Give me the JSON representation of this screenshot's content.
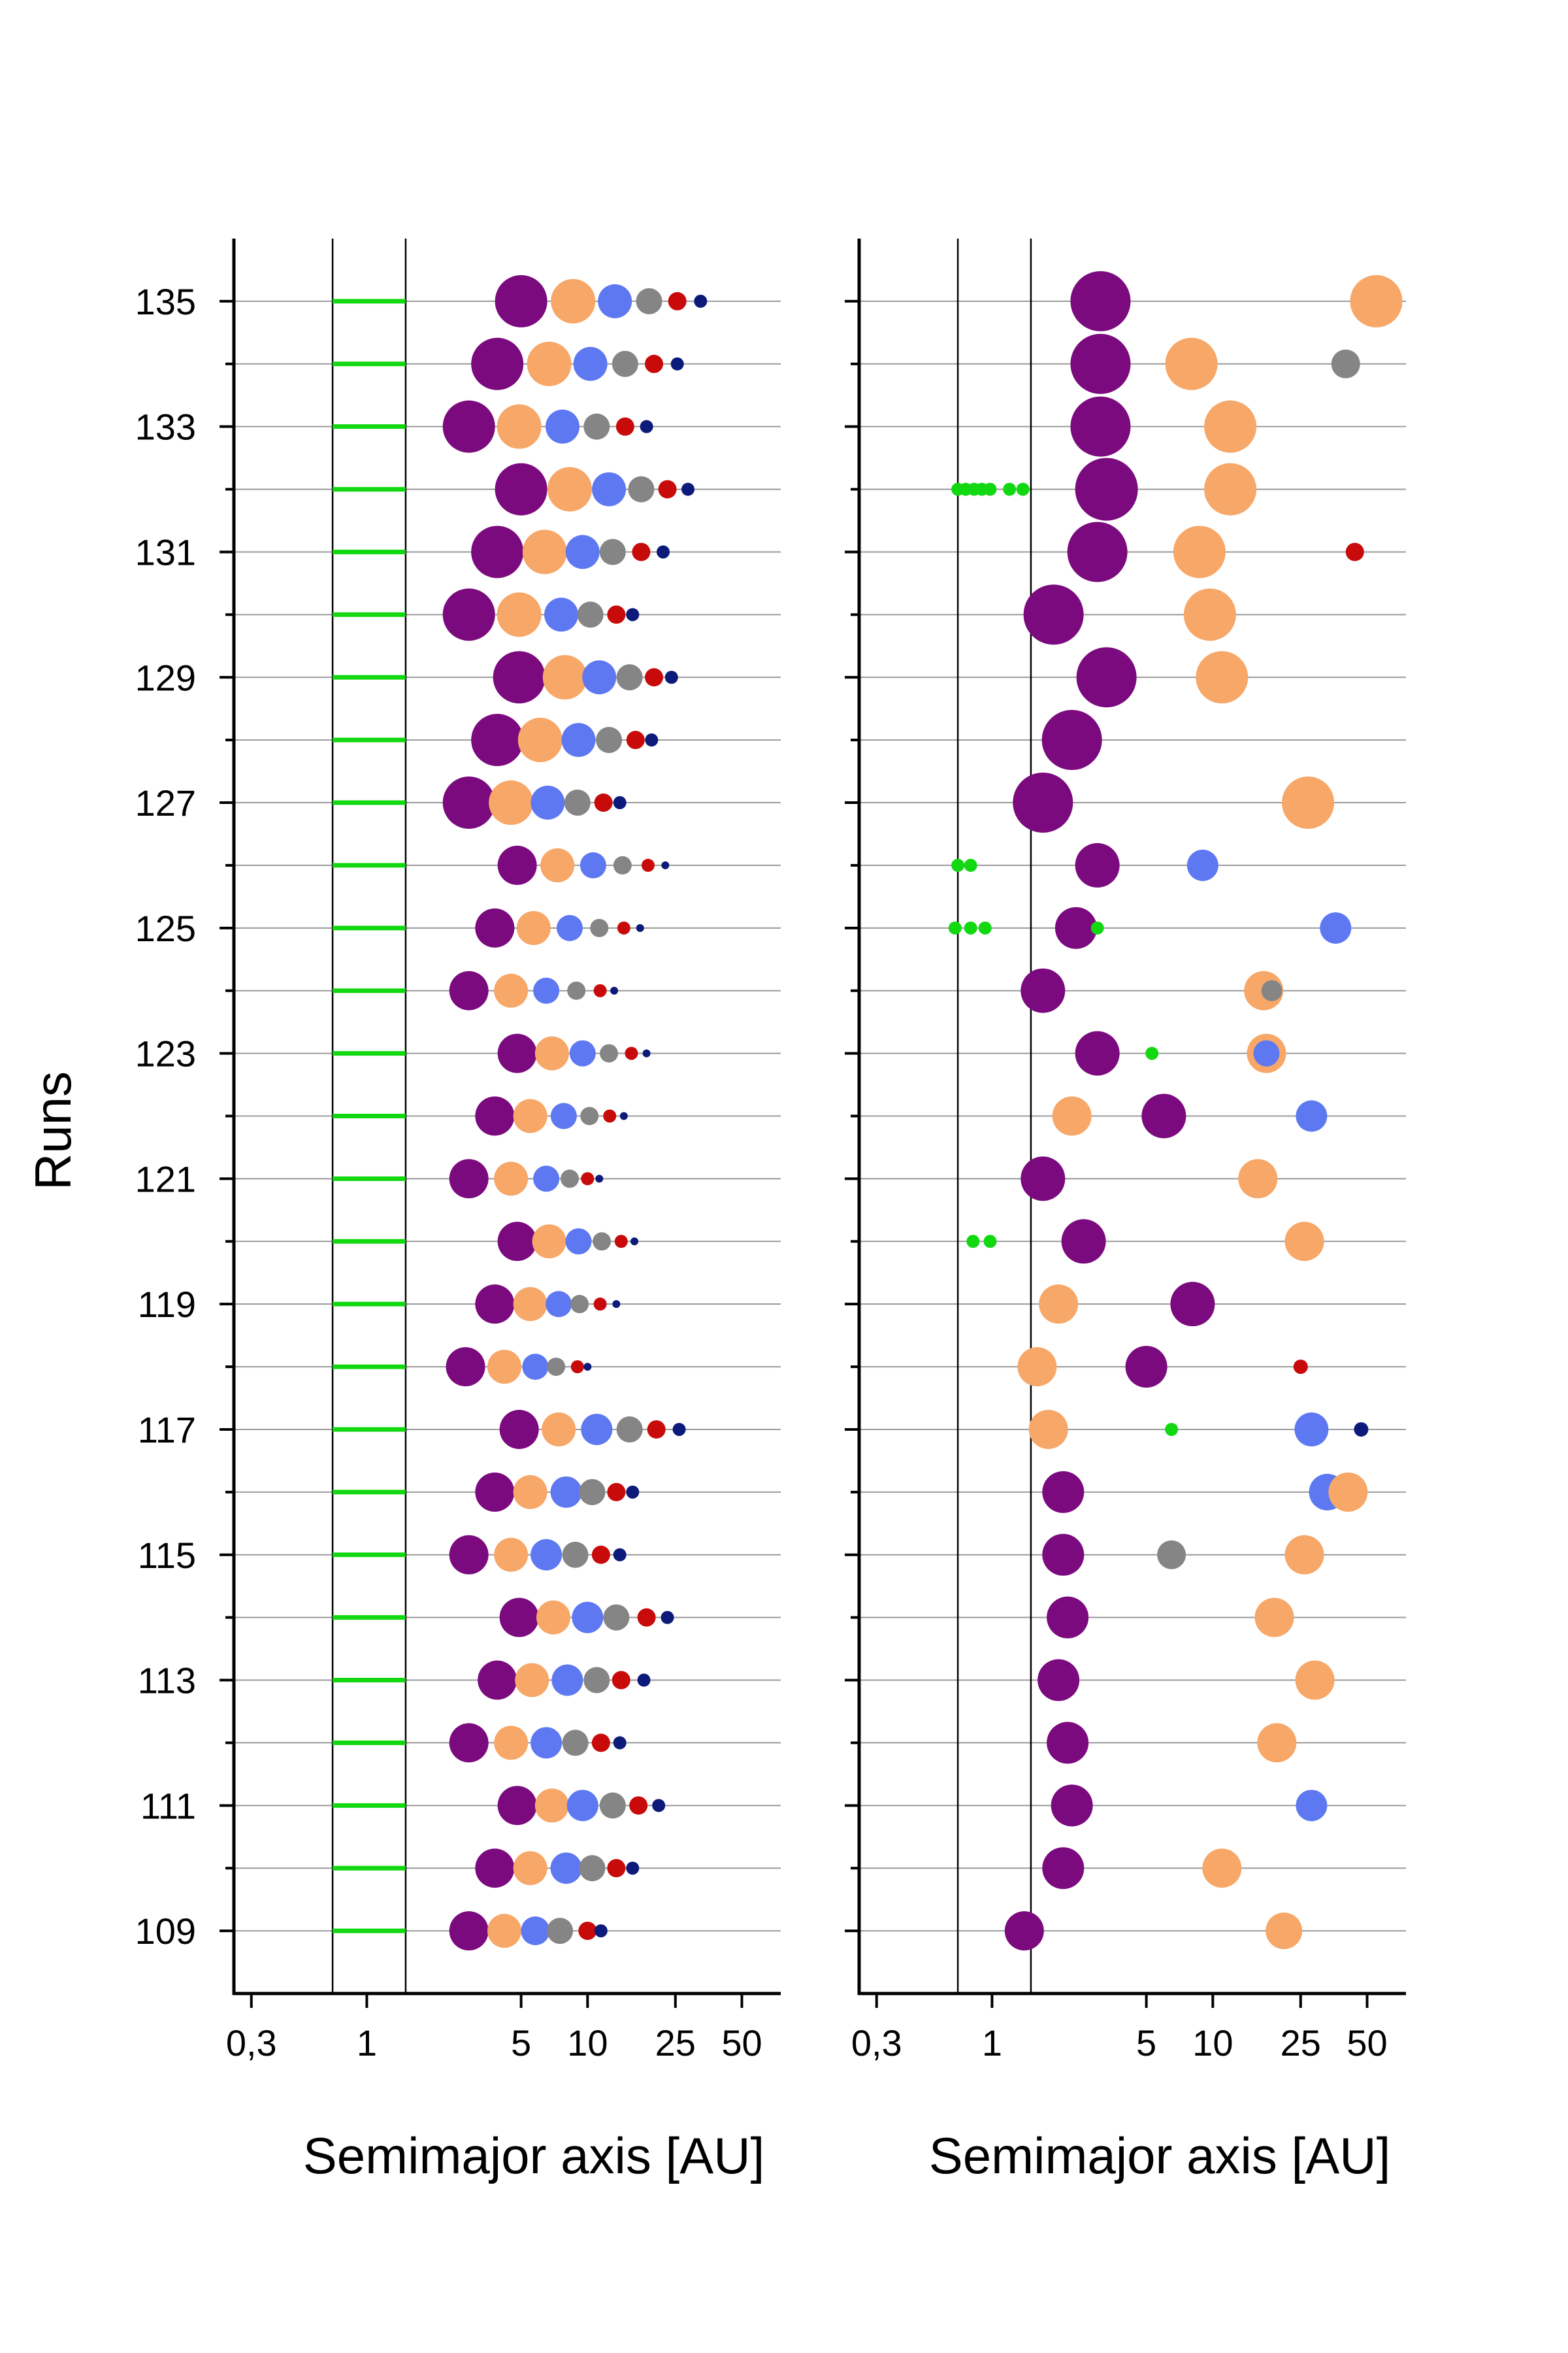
{
  "colors": {
    "purple": "#7b0a7e",
    "orange": "#f7a767",
    "blue": "#5e78f2",
    "grey": "#858585",
    "red": "#c80a0a",
    "navy": "#0c1a7a",
    "green": "#11d811"
  },
  "y_axis": {
    "label": "Runs",
    "tick_labels": [
      "109",
      "111",
      "113",
      "115",
      "117",
      "119",
      "121",
      "123",
      "125",
      "127",
      "129",
      "131",
      "133",
      "135"
    ]
  },
  "x_axis": {
    "tick_labels": [
      "0,3",
      "1",
      "5",
      "10",
      "25",
      "50"
    ]
  },
  "chart_data": [
    {
      "type": "scatter",
      "panel": "left",
      "xlabel": "Semimajor axis [AU]",
      "ylabel": "Runs",
      "xscale": "log",
      "xlim": [
        0.25,
        75
      ],
      "ylim": [
        108,
        136
      ],
      "vlines": [
        0.7,
        1.5
      ],
      "green_segment": [
        0.7,
        1.5
      ],
      "runs": [
        109,
        110,
        111,
        112,
        113,
        114,
        115,
        116,
        117,
        118,
        119,
        120,
        121,
        122,
        123,
        124,
        125,
        126,
        127,
        128,
        129,
        130,
        131,
        132,
        133,
        134,
        135
      ],
      "bodies": [
        {
          "run": 109,
          "a": [
            2.9,
            4.2,
            5.8,
            7.5,
            10,
            11.5
          ],
          "size": [
            30,
            26,
            22,
            20,
            14,
            10
          ]
        },
        {
          "run": 110,
          "a": [
            3.8,
            5.5,
            8,
            10.5,
            13.5,
            16
          ],
          "size": [
            30,
            26,
            24,
            20,
            14,
            10
          ]
        },
        {
          "run": 111,
          "a": [
            4.8,
            6.9,
            9.5,
            13,
            17,
            21
          ],
          "size": [
            30,
            26,
            24,
            20,
            14,
            10
          ]
        },
        {
          "run": 112,
          "a": [
            2.9,
            4.5,
            6.5,
            8.8,
            11.5,
            14
          ],
          "size": [
            30,
            26,
            24,
            20,
            14,
            10
          ]
        },
        {
          "run": 113,
          "a": [
            3.9,
            5.6,
            8.1,
            11,
            14.2,
            18
          ],
          "size": [
            30,
            26,
            24,
            20,
            14,
            10
          ]
        },
        {
          "run": 114,
          "a": [
            4.9,
            7,
            10,
            13.5,
            18.5,
            23
          ],
          "size": [
            30,
            26,
            24,
            20,
            14,
            10
          ]
        },
        {
          "run": 115,
          "a": [
            2.9,
            4.5,
            6.5,
            8.8,
            11.5,
            14
          ],
          "size": [
            30,
            26,
            24,
            20,
            14,
            10
          ]
        },
        {
          "run": 116,
          "a": [
            3.8,
            5.5,
            8,
            10.5,
            13.5,
            16
          ],
          "size": [
            30,
            26,
            24,
            20,
            14,
            10
          ]
        },
        {
          "run": 117,
          "a": [
            4.9,
            7.4,
            11,
            15.5,
            20.5,
            26
          ],
          "size": [
            30,
            26,
            24,
            20,
            14,
            10
          ]
        },
        {
          "run": 118,
          "a": [
            2.8,
            4.2,
            5.8,
            7.2,
            9,
            10
          ],
          "size": [
            30,
            26,
            20,
            14,
            10,
            6
          ]
        },
        {
          "run": 119,
          "a": [
            3.8,
            5.5,
            7.4,
            9.2,
            11.4,
            13.5
          ],
          "size": [
            30,
            26,
            20,
            14,
            10,
            6
          ]
        },
        {
          "run": 120,
          "a": [
            4.8,
            6.7,
            9.1,
            11.6,
            14.2,
            16.3
          ],
          "size": [
            30,
            26,
            20,
            14,
            10,
            6
          ]
        },
        {
          "run": 121,
          "a": [
            2.9,
            4.5,
            6.5,
            8.3,
            10,
            11.3
          ],
          "size": [
            30,
            26,
            20,
            14,
            10,
            6
          ]
        },
        {
          "run": 122,
          "a": [
            3.8,
            5.5,
            7.8,
            10.2,
            12.6,
            14.6
          ],
          "size": [
            30,
            26,
            20,
            14,
            10,
            6
          ]
        },
        {
          "run": 123,
          "a": [
            4.8,
            6.9,
            9.5,
            12.5,
            15.8,
            18.5
          ],
          "size": [
            30,
            26,
            20,
            14,
            10,
            6
          ]
        },
        {
          "run": 124,
          "a": [
            2.9,
            4.5,
            6.5,
            8.9,
            11.4,
            13.2
          ],
          "size": [
            30,
            26,
            20,
            14,
            10,
            6
          ]
        },
        {
          "run": 125,
          "a": [
            3.8,
            5.7,
            8.3,
            11.3,
            14.6,
            17.3
          ],
          "size": [
            30,
            26,
            20,
            14,
            10,
            6
          ]
        },
        {
          "run": 126,
          "a": [
            4.8,
            7.3,
            10.6,
            14.4,
            18.8,
            22.5
          ],
          "size": [
            30,
            26,
            20,
            14,
            10,
            6
          ]
        },
        {
          "run": 127,
          "a": [
            2.9,
            4.5,
            6.6,
            9,
            11.8,
            14
          ],
          "size": [
            40,
            34,
            26,
            20,
            14,
            10
          ]
        },
        {
          "run": 128,
          "a": [
            3.9,
            6.1,
            9.1,
            12.5,
            16.5,
            19.5
          ],
          "size": [
            40,
            34,
            26,
            20,
            14,
            10
          ]
        },
        {
          "run": 129,
          "a": [
            4.9,
            7.9,
            11.3,
            15.5,
            20,
            24
          ],
          "size": [
            40,
            34,
            26,
            20,
            14,
            10
          ]
        },
        {
          "run": 130,
          "a": [
            2.9,
            4.9,
            7.6,
            10.3,
            13.5,
            16
          ],
          "size": [
            40,
            34,
            26,
            20,
            14,
            10
          ]
        },
        {
          "run": 131,
          "a": [
            3.9,
            6.4,
            9.5,
            13,
            17.5,
            22
          ],
          "size": [
            40,
            34,
            26,
            20,
            14,
            10
          ]
        },
        {
          "run": 132,
          "a": [
            5,
            8.3,
            12.5,
            17.5,
            23,
            28.5
          ],
          "size": [
            40,
            34,
            26,
            20,
            14,
            10
          ]
        },
        {
          "run": 133,
          "a": [
            2.9,
            4.9,
            7.7,
            11,
            14.8,
            18.5
          ],
          "size": [
            40,
            34,
            26,
            20,
            14,
            10
          ]
        },
        {
          "run": 134,
          "a": [
            3.9,
            6.7,
            10.3,
            14.8,
            20,
            25.5
          ],
          "size": [
            40,
            34,
            26,
            20,
            14,
            10
          ]
        },
        {
          "run": 135,
          "a": [
            5,
            8.6,
            13.3,
            19,
            25.5,
            32.5
          ],
          "size": [
            40,
            34,
            26,
            20,
            14,
            10
          ]
        }
      ],
      "body_colors": [
        "purple",
        "orange",
        "blue",
        "grey",
        "red",
        "navy"
      ]
    },
    {
      "type": "scatter",
      "panel": "right",
      "xlabel": "Semimajor axis [AU]",
      "ylabel": "",
      "xscale": "log",
      "xlim": [
        0.25,
        75
      ],
      "ylim": [
        108,
        136
      ],
      "vlines": [
        0.7,
        1.5
      ],
      "runs": [
        109,
        110,
        111,
        112,
        113,
        114,
        115,
        116,
        117,
        118,
        119,
        120,
        121,
        122,
        123,
        124,
        125,
        126,
        127,
        128,
        129,
        130,
        131,
        132,
        133,
        134,
        135
      ],
      "points": [
        {
          "run": 109,
          "a": 1.4,
          "color": "purple",
          "size": 30
        },
        {
          "run": 109,
          "a": 21,
          "color": "orange",
          "size": 28
        },
        {
          "run": 110,
          "a": 2.1,
          "color": "purple",
          "size": 32
        },
        {
          "run": 110,
          "a": 11,
          "color": "orange",
          "size": 30
        },
        {
          "run": 111,
          "a": 2.3,
          "color": "purple",
          "size": 32
        },
        {
          "run": 111,
          "a": 28,
          "color": "blue",
          "size": 24
        },
        {
          "run": 112,
          "a": 2.2,
          "color": "purple",
          "size": 32
        },
        {
          "run": 112,
          "a": 19.5,
          "color": "orange",
          "size": 30
        },
        {
          "run": 113,
          "a": 2,
          "color": "purple",
          "size": 32
        },
        {
          "run": 113,
          "a": 29,
          "color": "orange",
          "size": 30
        },
        {
          "run": 114,
          "a": 2.2,
          "color": "purple",
          "size": 32
        },
        {
          "run": 114,
          "a": 19,
          "color": "orange",
          "size": 30
        },
        {
          "run": 115,
          "a": 2.1,
          "color": "purple",
          "size": 32
        },
        {
          "run": 115,
          "a": 6.5,
          "color": "grey",
          "size": 22
        },
        {
          "run": 115,
          "a": 26,
          "color": "orange",
          "size": 30
        },
        {
          "run": 116,
          "a": 2.1,
          "color": "purple",
          "size": 32
        },
        {
          "run": 116,
          "a": 33,
          "color": "blue",
          "size": 28
        },
        {
          "run": 116,
          "a": 41,
          "color": "orange",
          "size": 30
        },
        {
          "run": 117,
          "a": 1.8,
          "color": "orange",
          "size": 30
        },
        {
          "run": 117,
          "a": 6.5,
          "color": "green",
          "size": 10
        },
        {
          "run": 117,
          "a": 28,
          "color": "blue",
          "size": 26
        },
        {
          "run": 117,
          "a": 47,
          "color": "navy",
          "size": 11
        },
        {
          "run": 118,
          "a": 1.6,
          "color": "orange",
          "size": 30
        },
        {
          "run": 118,
          "a": 5,
          "color": "purple",
          "size": 32
        },
        {
          "run": 118,
          "a": 25,
          "color": "red",
          "size": 11
        },
        {
          "run": 119,
          "a": 2,
          "color": "orange",
          "size": 30
        },
        {
          "run": 119,
          "a": 8.1,
          "color": "purple",
          "size": 34
        },
        {
          "run": 120,
          "a": 0.82,
          "color": "green",
          "size": 10
        },
        {
          "run": 120,
          "a": 0.98,
          "color": "green",
          "size": 10
        },
        {
          "run": 120,
          "a": 2.6,
          "color": "purple",
          "size": 34
        },
        {
          "run": 120,
          "a": 26,
          "color": "orange",
          "size": 30
        },
        {
          "run": 121,
          "a": 1.7,
          "color": "purple",
          "size": 34
        },
        {
          "run": 121,
          "a": 16,
          "color": "orange",
          "size": 30
        },
        {
          "run": 122,
          "a": 2.3,
          "color": "orange",
          "size": 30
        },
        {
          "run": 122,
          "a": 6,
          "color": "purple",
          "size": 34
        },
        {
          "run": 122,
          "a": 28,
          "color": "blue",
          "size": 24
        },
        {
          "run": 123,
          "a": 3,
          "color": "purple",
          "size": 34
        },
        {
          "run": 123,
          "a": 5.3,
          "color": "green",
          "size": 10
        },
        {
          "run": 123,
          "a": 17.5,
          "color": "orange",
          "size": 30
        },
        {
          "run": 123,
          "a": 17.5,
          "color": "blue",
          "size": 20
        },
        {
          "run": 124,
          "a": 1.7,
          "color": "purple",
          "size": 34
        },
        {
          "run": 124,
          "a": 17,
          "color": "orange",
          "size": 30
        },
        {
          "run": 124,
          "a": 18.5,
          "color": "grey",
          "size": 16
        },
        {
          "run": 125,
          "a": 0.68,
          "color": "green",
          "size": 10
        },
        {
          "run": 125,
          "a": 0.8,
          "color": "green",
          "size": 10
        },
        {
          "run": 125,
          "a": 0.93,
          "color": "green",
          "size": 10
        },
        {
          "run": 125,
          "a": 2.4,
          "color": "purple",
          "size": 32
        },
        {
          "run": 125,
          "a": 3,
          "color": "green",
          "size": 10
        },
        {
          "run": 125,
          "a": 36,
          "color": "blue",
          "size": 24
        },
        {
          "run": 126,
          "a": 0.7,
          "color": "green",
          "size": 10
        },
        {
          "run": 126,
          "a": 0.8,
          "color": "green",
          "size": 10
        },
        {
          "run": 126,
          "a": 3,
          "color": "purple",
          "size": 34
        },
        {
          "run": 126,
          "a": 9,
          "color": "blue",
          "size": 24
        },
        {
          "run": 127,
          "a": 1.7,
          "color": "purple",
          "size": 46
        },
        {
          "run": 127,
          "a": 27,
          "color": "orange",
          "size": 40
        },
        {
          "run": 128,
          "a": 2.3,
          "color": "purple",
          "size": 46
        },
        {
          "run": 129,
          "a": 3.3,
          "color": "purple",
          "size": 46
        },
        {
          "run": 129,
          "a": 11,
          "color": "orange",
          "size": 40
        },
        {
          "run": 130,
          "a": 1.9,
          "color": "purple",
          "size": 46
        },
        {
          "run": 130,
          "a": 9.7,
          "color": "orange",
          "size": 40
        },
        {
          "run": 131,
          "a": 3,
          "color": "purple",
          "size": 46
        },
        {
          "run": 131,
          "a": 8.7,
          "color": "orange",
          "size": 40
        },
        {
          "run": 131,
          "a": 44,
          "color": "red",
          "size": 14
        },
        {
          "run": 132,
          "a": 0.7,
          "color": "green",
          "size": 10
        },
        {
          "run": 132,
          "a": 0.76,
          "color": "green",
          "size": 10
        },
        {
          "run": 132,
          "a": 0.83,
          "color": "green",
          "size": 10
        },
        {
          "run": 132,
          "a": 0.9,
          "color": "green",
          "size": 10
        },
        {
          "run": 132,
          "a": 0.98,
          "color": "green",
          "size": 10
        },
        {
          "run": 132,
          "a": 1.2,
          "color": "green",
          "size": 10
        },
        {
          "run": 132,
          "a": 1.38,
          "color": "green",
          "size": 10
        },
        {
          "run": 132,
          "a": 3.3,
          "color": "purple",
          "size": 48
        },
        {
          "run": 132,
          "a": 12,
          "color": "orange",
          "size": 40
        },
        {
          "run": 133,
          "a": 3.1,
          "color": "purple",
          "size": 46
        },
        {
          "run": 133,
          "a": 12,
          "color": "orange",
          "size": 40
        },
        {
          "run": 134,
          "a": 3.1,
          "color": "purple",
          "size": 46
        },
        {
          "run": 134,
          "a": 8,
          "color": "orange",
          "size": 40
        },
        {
          "run": 134,
          "a": 40,
          "color": "grey",
          "size": 22
        },
        {
          "run": 135,
          "a": 3.1,
          "color": "purple",
          "size": 46
        },
        {
          "run": 135,
          "a": 55,
          "color": "orange",
          "size": 40
        }
      ]
    }
  ]
}
